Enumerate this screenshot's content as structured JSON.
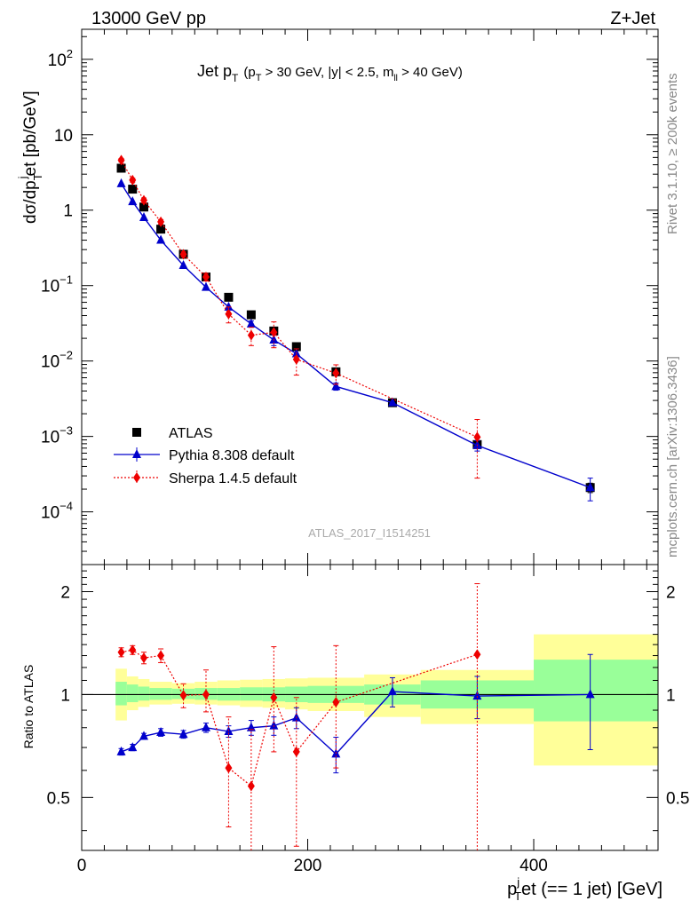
{
  "header": {
    "left": "13000 GeV pp",
    "right": "Z+Jet"
  },
  "side_labels": {
    "rivet": "Rivet 3.1.10, ≥ 200k events",
    "mcplots": "mcplots.cern.ch [arXiv:1306.3436]"
  },
  "analysis_id": "ATLAS_2017_I1514251",
  "colors": {
    "atlas": "#000000",
    "pythia": "#0000cc",
    "sherpa": "#ee0000",
    "band_inner": "#99ff99",
    "band_outer": "#ffff99"
  },
  "chart_data": [
    {
      "type": "scatter",
      "panel": "main",
      "yscale": "log",
      "title_text": "Jet p",
      "title_sub": "T",
      "title_cuts": {
        "a": "(p",
        "a_sub": "T",
        "b": " > 30 GeV, |y| < 2.5, m",
        "b_sub": "ll",
        "c": " > 40 GeV)"
      },
      "ylabel": {
        "a": "dσ/dp",
        "sub": "T",
        "sup": "j",
        "b": "et [pb/GeV]"
      },
      "xlim": [
        0,
        510
      ],
      "ylim": [
        2e-05,
        250
      ],
      "yticks": [
        {
          "value": 100,
          "base": "10",
          "exp": "2"
        },
        {
          "value": 10,
          "base": "10",
          "exp": ""
        },
        {
          "value": 1,
          "base": "1",
          "exp": ""
        },
        {
          "value": 0.1,
          "base": "10",
          "exp": "−1"
        },
        {
          "value": 0.01,
          "base": "10",
          "exp": "−2"
        },
        {
          "value": 0.001,
          "base": "10",
          "exp": "−3"
        },
        {
          "value": 0.0001,
          "base": "10",
          "exp": "−4"
        }
      ],
      "legend": [
        {
          "label": "ATLAS",
          "series": "atlas"
        },
        {
          "label": "Pythia 8.308 default",
          "series": "pythia"
        },
        {
          "label": "Sherpa 1.4.5 default",
          "series": "sherpa"
        }
      ],
      "legend_position": "bottom-left",
      "series": [
        {
          "name": "ATLAS",
          "key": "atlas",
          "marker": "square",
          "x": [
            35,
            45,
            55,
            70,
            90,
            110,
            130,
            150,
            170,
            190,
            225,
            275,
            350,
            450
          ],
          "y": [
            3.6,
            1.9,
            1.1,
            0.56,
            0.26,
            0.13,
            0.07,
            0.041,
            0.025,
            0.0155,
            0.0072,
            0.0028,
            0.00078,
            0.00021
          ],
          "xerr": [
            5,
            5,
            5,
            10,
            10,
            10,
            10,
            10,
            10,
            10,
            25,
            25,
            50,
            50
          ],
          "yerr": [
            0,
            0,
            0,
            0,
            0,
            0,
            0,
            0,
            0,
            0,
            0,
            0,
            8e-05,
            3e-05
          ]
        },
        {
          "name": "Pythia 8.308 default",
          "key": "pythia",
          "marker": "triangle",
          "x": [
            35,
            45,
            55,
            70,
            90,
            110,
            130,
            150,
            170,
            190,
            225,
            275,
            350,
            450
          ],
          "y": [
            2.25,
            1.3,
            0.8,
            0.4,
            0.185,
            0.095,
            0.052,
            0.031,
            0.019,
            0.0125,
            0.0046,
            0.0028,
            0.00076,
            0.00021
          ],
          "yerr_lo": [
            0,
            0,
            0,
            0,
            0,
            0,
            0,
            0.003,
            0.003,
            0.002,
            0.0005,
            0,
            0.00012,
            7e-05
          ],
          "yerr_hi": [
            0,
            0,
            0,
            0,
            0,
            0,
            0,
            0.003,
            0.003,
            0.002,
            0.0005,
            0,
            0.00012,
            7e-05
          ]
        },
        {
          "name": "Sherpa 1.4.5 default",
          "key": "sherpa",
          "marker": "diamond",
          "x": [
            35,
            45,
            55,
            70,
            90,
            110,
            130,
            150,
            170,
            190,
            225,
            350
          ],
          "y": [
            4.6,
            2.5,
            1.35,
            0.7,
            0.26,
            0.13,
            0.042,
            0.022,
            0.024,
            0.0105,
            0.0069,
            0.00098
          ],
          "yerr_lo": [
            0.25,
            0.15,
            0.1,
            0.05,
            0.02,
            0.015,
            0.01,
            0.006,
            0.009,
            0.004,
            0.002,
            0.0007
          ],
          "yerr_hi": [
            0.25,
            0.15,
            0.1,
            0.05,
            0.02,
            0.015,
            0.01,
            0.006,
            0.009,
            0.004,
            0.002,
            0.0007
          ]
        }
      ]
    },
    {
      "type": "scatter",
      "panel": "ratio",
      "yscale": "log",
      "ylabel": "Ratio to ATLAS",
      "xlabel": {
        "a": "p",
        "sup": "j",
        "sub": "T",
        "b": "et (== 1 jet) [GeV]"
      },
      "xlim": [
        0,
        510
      ],
      "ylim": [
        0.35,
        2.4
      ],
      "xticks": [
        0,
        200,
        400
      ],
      "yticks": [
        {
          "value": 0.5,
          "label": "0.5"
        },
        {
          "value": 1,
          "label": "1"
        },
        {
          "value": 2,
          "label": "2"
        }
      ],
      "bands": [
        {
          "x0": 30,
          "x1": 40,
          "in_lo": 0.93,
          "in_hi": 1.09,
          "out_lo": 0.84,
          "out_hi": 1.19
        },
        {
          "x0": 40,
          "x1": 50,
          "in_lo": 0.95,
          "in_hi": 1.07,
          "out_lo": 0.9,
          "out_hi": 1.13
        },
        {
          "x0": 50,
          "x1": 60,
          "in_lo": 0.96,
          "in_hi": 1.055,
          "out_lo": 0.92,
          "out_hi": 1.11
        },
        {
          "x0": 60,
          "x1": 80,
          "in_lo": 0.965,
          "in_hi": 1.045,
          "out_lo": 0.935,
          "out_hi": 1.09
        },
        {
          "x0": 80,
          "x1": 100,
          "in_lo": 0.97,
          "in_hi": 1.04,
          "out_lo": 0.94,
          "out_hi": 1.08
        },
        {
          "x0": 100,
          "x1": 120,
          "in_lo": 0.965,
          "in_hi": 1.045,
          "out_lo": 0.935,
          "out_hi": 1.09
        },
        {
          "x0": 120,
          "x1": 140,
          "in_lo": 0.96,
          "in_hi": 1.045,
          "out_lo": 0.93,
          "out_hi": 1.1
        },
        {
          "x0": 140,
          "x1": 160,
          "in_lo": 0.96,
          "in_hi": 1.05,
          "out_lo": 0.92,
          "out_hi": 1.105
        },
        {
          "x0": 160,
          "x1": 180,
          "in_lo": 0.955,
          "in_hi": 1.05,
          "out_lo": 0.915,
          "out_hi": 1.11
        },
        {
          "x0": 180,
          "x1": 200,
          "in_lo": 0.95,
          "in_hi": 1.055,
          "out_lo": 0.905,
          "out_hi": 1.115
        },
        {
          "x0": 200,
          "x1": 250,
          "in_lo": 0.945,
          "in_hi": 1.06,
          "out_lo": 0.895,
          "out_hi": 1.12
        },
        {
          "x0": 250,
          "x1": 300,
          "in_lo": 0.935,
          "in_hi": 1.07,
          "out_lo": 0.86,
          "out_hi": 1.145
        },
        {
          "x0": 300,
          "x1": 400,
          "in_lo": 0.91,
          "in_hi": 1.1,
          "out_lo": 0.82,
          "out_hi": 1.18
        },
        {
          "x0": 400,
          "x1": 510,
          "in_lo": 0.835,
          "in_hi": 1.265,
          "out_lo": 0.62,
          "out_hi": 1.5
        }
      ],
      "series": [
        {
          "name": "Pythia 8.308 default",
          "key": "pythia",
          "marker": "triangle",
          "x": [
            35,
            45,
            55,
            70,
            90,
            110,
            130,
            150,
            170,
            190,
            225,
            275,
            350,
            450
          ],
          "y": [
            0.68,
            0.7,
            0.755,
            0.775,
            0.765,
            0.8,
            0.78,
            0.8,
            0.81,
            0.855,
            0.67,
            1.02,
            0.99,
            1.0
          ],
          "yerr_lo": [
            0.015,
            0.015,
            0.015,
            0.02,
            0.02,
            0.025,
            0.03,
            0.04,
            0.05,
            0.06,
            0.08,
            0.1,
            0.14,
            0.31
          ],
          "yerr_hi": [
            0.015,
            0.015,
            0.015,
            0.02,
            0.02,
            0.025,
            0.03,
            0.04,
            0.05,
            0.06,
            0.08,
            0.1,
            0.14,
            0.31
          ]
        },
        {
          "name": "Sherpa 1.4.5 default",
          "key": "sherpa",
          "marker": "diamond",
          "x": [
            35,
            45,
            55,
            70,
            90,
            110,
            130,
            150,
            170,
            190,
            225,
            350
          ],
          "y": [
            1.33,
            1.35,
            1.28,
            1.3,
            0.995,
            1.0,
            0.61,
            0.54,
            0.98,
            0.68,
            0.95,
            1.31
          ],
          "yerr_lo": [
            0.04,
            0.04,
            0.05,
            0.06,
            0.08,
            0.11,
            0.2,
            0.2,
            0.3,
            0.32,
            0.34,
            1.0
          ],
          "yerr_hi": [
            0.04,
            0.04,
            0.05,
            0.06,
            0.08,
            0.18,
            0.25,
            0.25,
            0.4,
            0.3,
            0.44,
            0.8
          ]
        }
      ]
    }
  ]
}
